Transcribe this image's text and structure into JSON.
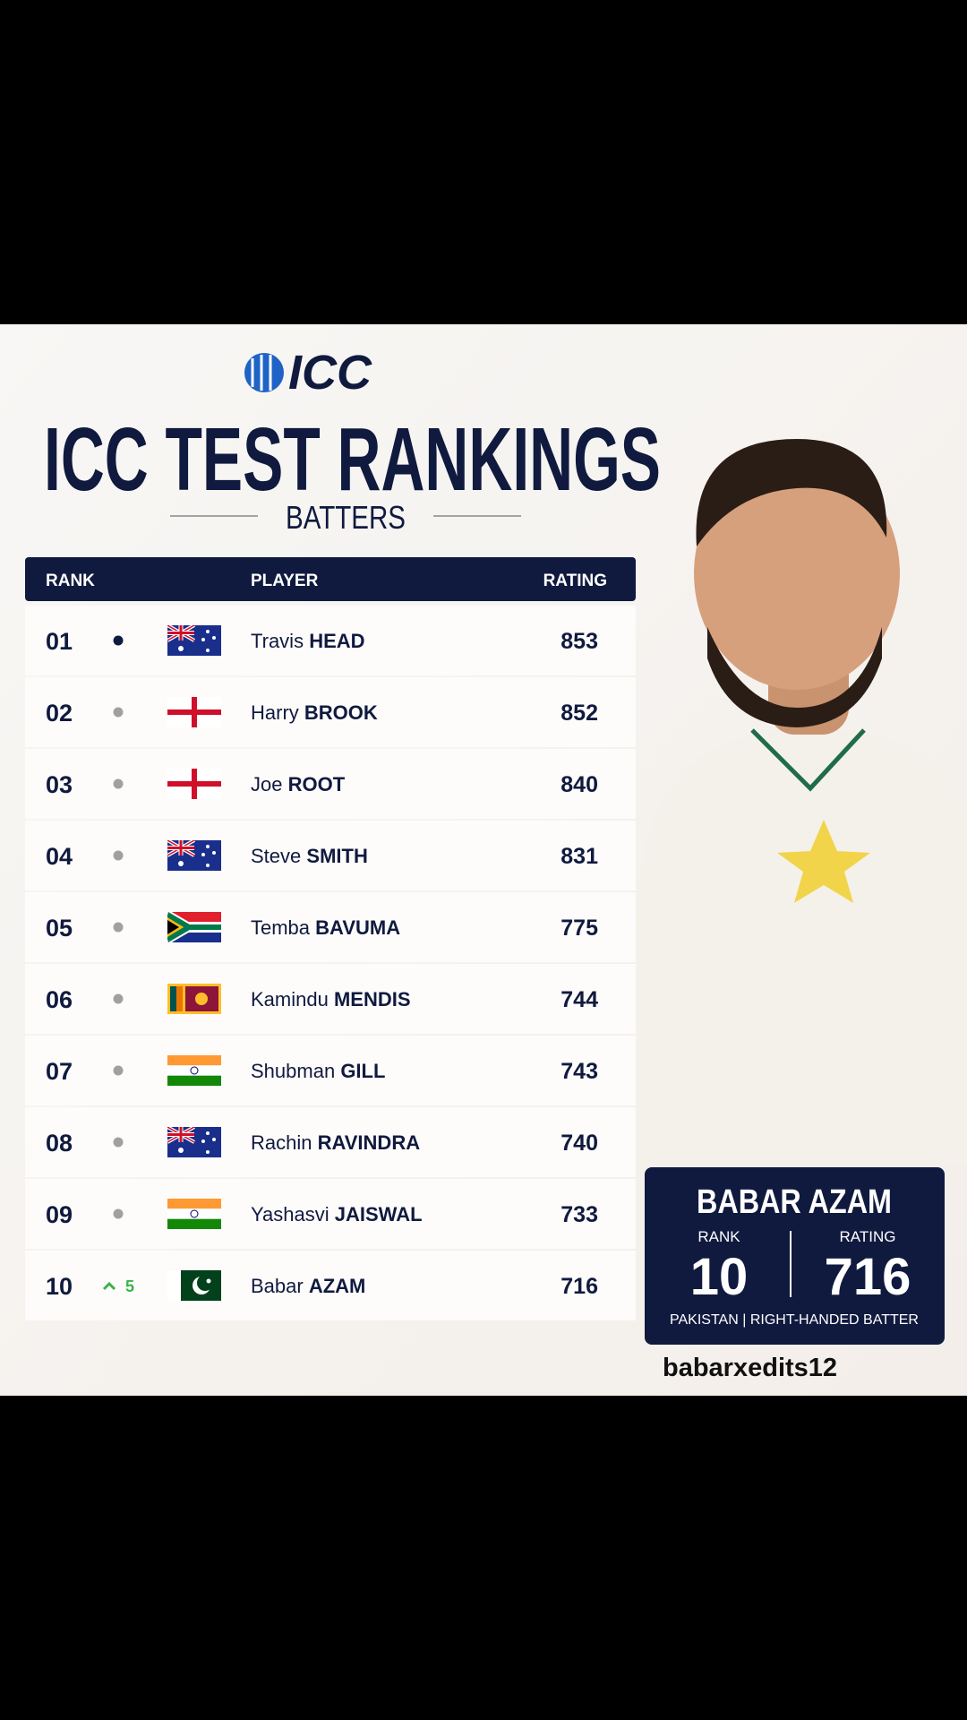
{
  "logo": "ICC",
  "title": "ICC TEST RANKINGS",
  "subtitle": "BATTERS",
  "table": {
    "headers": [
      "RANK",
      "PLAYER",
      "RATING"
    ],
    "rows": [
      {
        "rank": "01",
        "first": "Travis",
        "last": "HEAD",
        "rating": 853
      },
      {
        "rank": "02",
        "first": "Harry",
        "last": "BROOK",
        "rating": 852
      },
      {
        "rank": "03",
        "first": "Joe",
        "last": "ROOT",
        "rating": 840
      },
      {
        "rank": "04",
        "first": "Steve",
        "last": "SMITH",
        "rating": 831
      },
      {
        "rank": "05",
        "first": "Temba",
        "last": "BAVUMA",
        "rating": 775
      },
      {
        "rank": "06",
        "first": "Kamindu",
        "last": "MENDIS",
        "rating": 744
      },
      {
        "rank": "07",
        "first": "Shubman",
        "last": "GILL",
        "rating": 743
      },
      {
        "rank": "08",
        "first": "Rachin",
        "last": "RAVINDRA",
        "rating": 740
      },
      {
        "rank": "09",
        "first": "Yashasvi",
        "last": "JAISWAL",
        "rating": 733
      },
      {
        "rank": "10",
        "first": "Babar",
        "last": "AZAM",
        "rating": 716,
        "change": 5
      }
    ]
  },
  "featured": {
    "name": "BABAR AZAM",
    "rank_label": "RANK",
    "rank": "10",
    "rating_label": "RATING",
    "rating": 716,
    "caption": "PAKISTAN | RIGHT-HANDED BATTER"
  },
  "watermark": "babarxedits12"
}
